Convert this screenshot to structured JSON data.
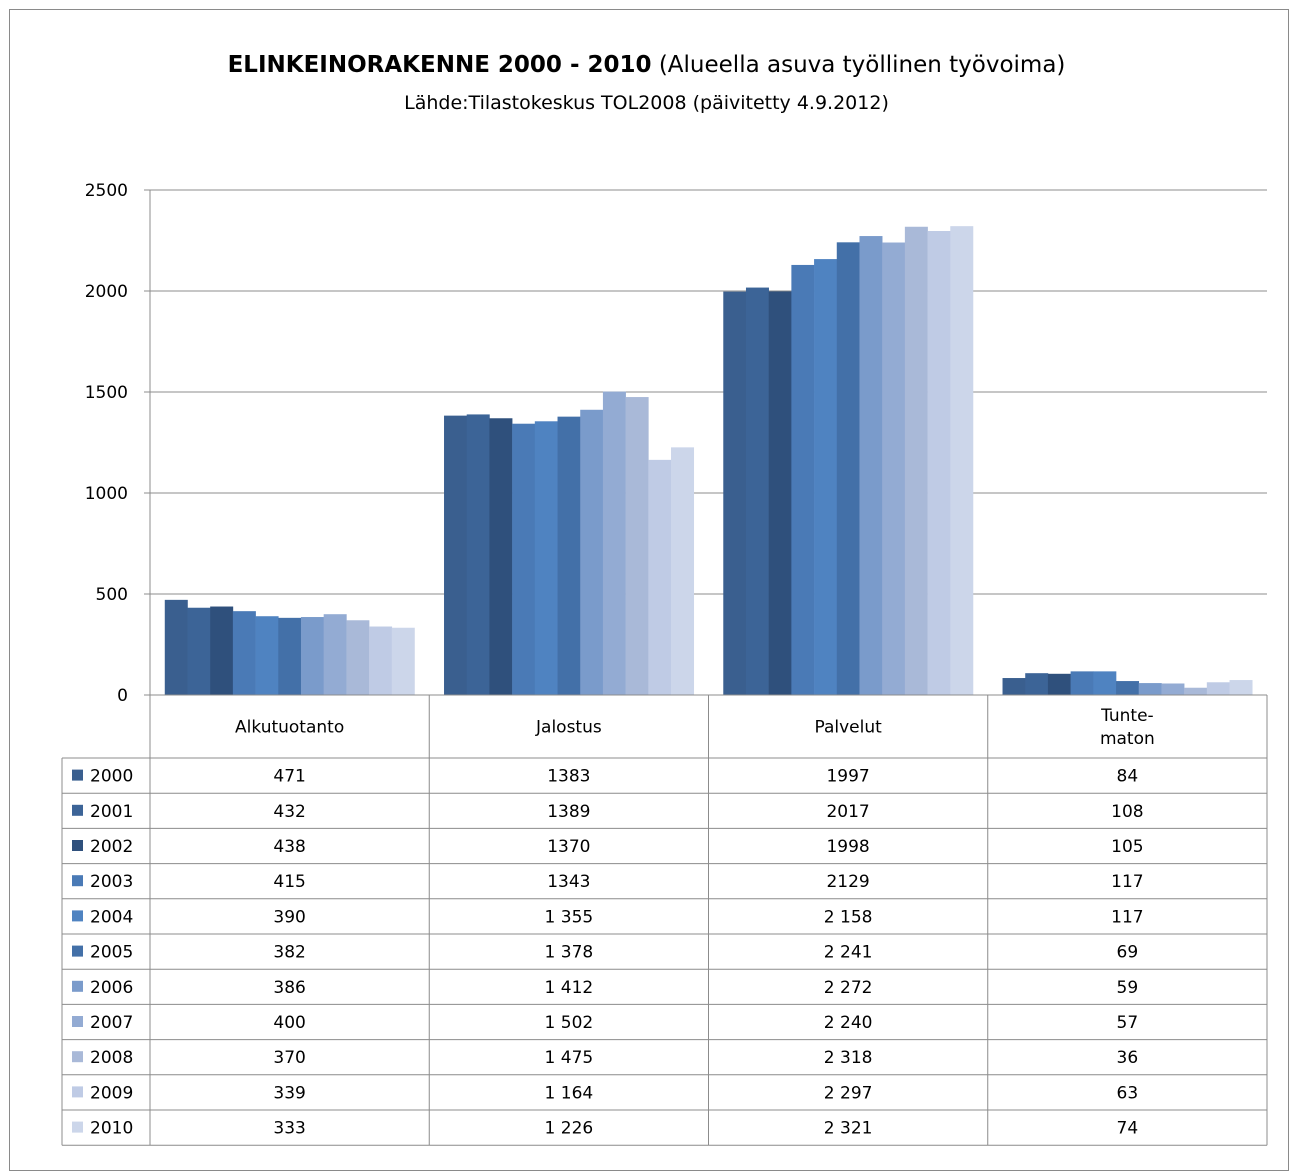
{
  "chart_data": {
    "type": "bar",
    "title": "ELINKEINORAKENNE 2000 - 2010",
    "title_suffix": "(Alueella asuva työllinen työvoima)",
    "subtitle": "Lähde:Tilastokeskus TOL2008 (päivitetty 4.9.2012)",
    "categories": [
      "Alkutuotanto",
      "Jalostus",
      "Palvelut",
      "Tunte-\nmaton"
    ],
    "ylim": [
      0,
      2500
    ],
    "yticks": [
      0,
      500,
      1000,
      1500,
      2000,
      2500
    ],
    "grid": true,
    "legend": "data-table",
    "series": [
      {
        "name": "2000",
        "color": "#3a5f8f",
        "values": [
          471,
          1383,
          1997,
          84
        ],
        "labels": [
          "471",
          "1383",
          "1997",
          "84"
        ]
      },
      {
        "name": "2001",
        "color": "#3c6497",
        "values": [
          432,
          1389,
          2017,
          108
        ],
        "labels": [
          "432",
          "1389",
          "2017",
          "108"
        ]
      },
      {
        "name": "2002",
        "color": "#2f507c",
        "values": [
          438,
          1370,
          1998,
          105
        ],
        "labels": [
          "438",
          "1370",
          "1998",
          "105"
        ]
      },
      {
        "name": "2003",
        "color": "#4a7ab6",
        "values": [
          415,
          1343,
          2129,
          117
        ],
        "labels": [
          "415",
          "1343",
          "2129",
          "117"
        ]
      },
      {
        "name": "2004",
        "color": "#4f83c1",
        "values": [
          390,
          1355,
          2158,
          117
        ],
        "labels": [
          "390",
          "1 355",
          "2 158",
          "117"
        ]
      },
      {
        "name": "2005",
        "color": "#4370a8",
        "values": [
          382,
          1378,
          2241,
          69
        ],
        "labels": [
          "382",
          "1 378",
          "2 241",
          "69"
        ]
      },
      {
        "name": "2006",
        "color": "#7a9bcb",
        "values": [
          386,
          1412,
          2272,
          59
        ],
        "labels": [
          "386",
          "1 412",
          "2 272",
          "59"
        ]
      },
      {
        "name": "2007",
        "color": "#93abd3",
        "values": [
          400,
          1502,
          2240,
          57
        ],
        "labels": [
          "400",
          "1 502",
          "2 240",
          "57"
        ]
      },
      {
        "name": "2008",
        "color": "#a9b9d8",
        "values": [
          370,
          1475,
          2318,
          36
        ],
        "labels": [
          "370",
          "1 475",
          "2 318",
          "36"
        ]
      },
      {
        "name": "2009",
        "color": "#bfcbe5",
        "values": [
          339,
          1164,
          2297,
          63
        ],
        "labels": [
          "339",
          "1 164",
          "2 297",
          "63"
        ]
      },
      {
        "name": "2010",
        "color": "#ccd6ea",
        "values": [
          333,
          1226,
          2321,
          74
        ],
        "labels": [
          "333",
          "1 226",
          "2 321",
          "74"
        ]
      }
    ]
  }
}
